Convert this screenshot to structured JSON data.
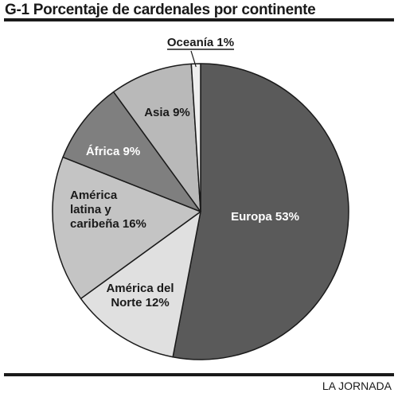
{
  "source_credit": "LA JORNADA",
  "chart_data": {
    "type": "pie",
    "title": "G-1 Porcentaje de cardenales por continente",
    "unit": "%",
    "slices": [
      {
        "label": "Europa 53%",
        "value": 53,
        "color": "#5a5a5a",
        "text_color": "#ffffff"
      },
      {
        "label": "América del Norte 12%",
        "value": 12,
        "color": "#e0e0e0",
        "text_color": "#1a1a1a"
      },
      {
        "label": "América latina y caribeña 16%",
        "value": 16,
        "color": "#c4c4c4",
        "text_color": "#1a1a1a"
      },
      {
        "label": "África 9%",
        "value": 9,
        "color": "#7f7f7f",
        "text_color": "#ffffff"
      },
      {
        "label": "Asia 9%",
        "value": 9,
        "color": "#b9b9b9",
        "text_color": "#1a1a1a"
      },
      {
        "label": "Oceanía 1%",
        "value": 1,
        "color": "#eeeeee",
        "text_color": "#1a1a1a"
      }
    ]
  }
}
